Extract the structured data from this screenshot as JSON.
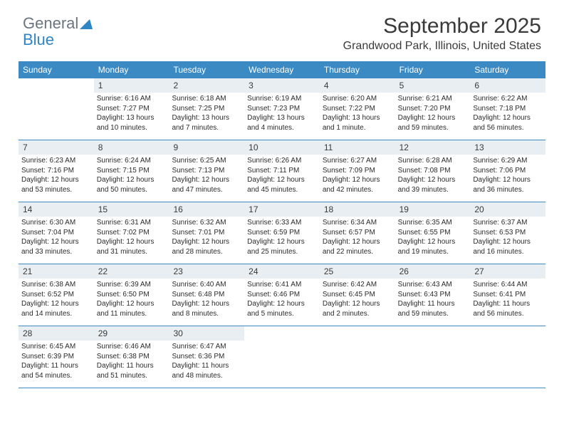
{
  "logo": {
    "text1": "General",
    "text2": "Blue"
  },
  "title": "September 2025",
  "location": "Grandwood Park, Illinois, United States",
  "colors": {
    "header_bg": "#3b8ac4",
    "header_text": "#ffffff",
    "daynum_bg": "#e9eef2",
    "text": "#2b2b2b",
    "logo_gray": "#6b7680",
    "logo_blue": "#2f86c5",
    "rule": "#3b8ac4"
  },
  "day_labels": [
    "Sunday",
    "Monday",
    "Tuesday",
    "Wednesday",
    "Thursday",
    "Friday",
    "Saturday"
  ],
  "weeks": [
    [
      {
        "n": "",
        "empty": true
      },
      {
        "n": "1",
        "sunrise": "Sunrise: 6:16 AM",
        "sunset": "Sunset: 7:27 PM",
        "d1": "Daylight: 13 hours",
        "d2": "and 10 minutes."
      },
      {
        "n": "2",
        "sunrise": "Sunrise: 6:18 AM",
        "sunset": "Sunset: 7:25 PM",
        "d1": "Daylight: 13 hours",
        "d2": "and 7 minutes."
      },
      {
        "n": "3",
        "sunrise": "Sunrise: 6:19 AM",
        "sunset": "Sunset: 7:23 PM",
        "d1": "Daylight: 13 hours",
        "d2": "and 4 minutes."
      },
      {
        "n": "4",
        "sunrise": "Sunrise: 6:20 AM",
        "sunset": "Sunset: 7:22 PM",
        "d1": "Daylight: 13 hours",
        "d2": "and 1 minute."
      },
      {
        "n": "5",
        "sunrise": "Sunrise: 6:21 AM",
        "sunset": "Sunset: 7:20 PM",
        "d1": "Daylight: 12 hours",
        "d2": "and 59 minutes."
      },
      {
        "n": "6",
        "sunrise": "Sunrise: 6:22 AM",
        "sunset": "Sunset: 7:18 PM",
        "d1": "Daylight: 12 hours",
        "d2": "and 56 minutes."
      }
    ],
    [
      {
        "n": "7",
        "sunrise": "Sunrise: 6:23 AM",
        "sunset": "Sunset: 7:16 PM",
        "d1": "Daylight: 12 hours",
        "d2": "and 53 minutes."
      },
      {
        "n": "8",
        "sunrise": "Sunrise: 6:24 AM",
        "sunset": "Sunset: 7:15 PM",
        "d1": "Daylight: 12 hours",
        "d2": "and 50 minutes."
      },
      {
        "n": "9",
        "sunrise": "Sunrise: 6:25 AM",
        "sunset": "Sunset: 7:13 PM",
        "d1": "Daylight: 12 hours",
        "d2": "and 47 minutes."
      },
      {
        "n": "10",
        "sunrise": "Sunrise: 6:26 AM",
        "sunset": "Sunset: 7:11 PM",
        "d1": "Daylight: 12 hours",
        "d2": "and 45 minutes."
      },
      {
        "n": "11",
        "sunrise": "Sunrise: 6:27 AM",
        "sunset": "Sunset: 7:09 PM",
        "d1": "Daylight: 12 hours",
        "d2": "and 42 minutes."
      },
      {
        "n": "12",
        "sunrise": "Sunrise: 6:28 AM",
        "sunset": "Sunset: 7:08 PM",
        "d1": "Daylight: 12 hours",
        "d2": "and 39 minutes."
      },
      {
        "n": "13",
        "sunrise": "Sunrise: 6:29 AM",
        "sunset": "Sunset: 7:06 PM",
        "d1": "Daylight: 12 hours",
        "d2": "and 36 minutes."
      }
    ],
    [
      {
        "n": "14",
        "sunrise": "Sunrise: 6:30 AM",
        "sunset": "Sunset: 7:04 PM",
        "d1": "Daylight: 12 hours",
        "d2": "and 33 minutes."
      },
      {
        "n": "15",
        "sunrise": "Sunrise: 6:31 AM",
        "sunset": "Sunset: 7:02 PM",
        "d1": "Daylight: 12 hours",
        "d2": "and 31 minutes."
      },
      {
        "n": "16",
        "sunrise": "Sunrise: 6:32 AM",
        "sunset": "Sunset: 7:01 PM",
        "d1": "Daylight: 12 hours",
        "d2": "and 28 minutes."
      },
      {
        "n": "17",
        "sunrise": "Sunrise: 6:33 AM",
        "sunset": "Sunset: 6:59 PM",
        "d1": "Daylight: 12 hours",
        "d2": "and 25 minutes."
      },
      {
        "n": "18",
        "sunrise": "Sunrise: 6:34 AM",
        "sunset": "Sunset: 6:57 PM",
        "d1": "Daylight: 12 hours",
        "d2": "and 22 minutes."
      },
      {
        "n": "19",
        "sunrise": "Sunrise: 6:35 AM",
        "sunset": "Sunset: 6:55 PM",
        "d1": "Daylight: 12 hours",
        "d2": "and 19 minutes."
      },
      {
        "n": "20",
        "sunrise": "Sunrise: 6:37 AM",
        "sunset": "Sunset: 6:53 PM",
        "d1": "Daylight: 12 hours",
        "d2": "and 16 minutes."
      }
    ],
    [
      {
        "n": "21",
        "sunrise": "Sunrise: 6:38 AM",
        "sunset": "Sunset: 6:52 PM",
        "d1": "Daylight: 12 hours",
        "d2": "and 14 minutes."
      },
      {
        "n": "22",
        "sunrise": "Sunrise: 6:39 AM",
        "sunset": "Sunset: 6:50 PM",
        "d1": "Daylight: 12 hours",
        "d2": "and 11 minutes."
      },
      {
        "n": "23",
        "sunrise": "Sunrise: 6:40 AM",
        "sunset": "Sunset: 6:48 PM",
        "d1": "Daylight: 12 hours",
        "d2": "and 8 minutes."
      },
      {
        "n": "24",
        "sunrise": "Sunrise: 6:41 AM",
        "sunset": "Sunset: 6:46 PM",
        "d1": "Daylight: 12 hours",
        "d2": "and 5 minutes."
      },
      {
        "n": "25",
        "sunrise": "Sunrise: 6:42 AM",
        "sunset": "Sunset: 6:45 PM",
        "d1": "Daylight: 12 hours",
        "d2": "and 2 minutes."
      },
      {
        "n": "26",
        "sunrise": "Sunrise: 6:43 AM",
        "sunset": "Sunset: 6:43 PM",
        "d1": "Daylight: 11 hours",
        "d2": "and 59 minutes."
      },
      {
        "n": "27",
        "sunrise": "Sunrise: 6:44 AM",
        "sunset": "Sunset: 6:41 PM",
        "d1": "Daylight: 11 hours",
        "d2": "and 56 minutes."
      }
    ],
    [
      {
        "n": "28",
        "sunrise": "Sunrise: 6:45 AM",
        "sunset": "Sunset: 6:39 PM",
        "d1": "Daylight: 11 hours",
        "d2": "and 54 minutes."
      },
      {
        "n": "29",
        "sunrise": "Sunrise: 6:46 AM",
        "sunset": "Sunset: 6:38 PM",
        "d1": "Daylight: 11 hours",
        "d2": "and 51 minutes."
      },
      {
        "n": "30",
        "sunrise": "Sunrise: 6:47 AM",
        "sunset": "Sunset: 6:36 PM",
        "d1": "Daylight: 11 hours",
        "d2": "and 48 minutes."
      },
      {
        "n": "",
        "empty": true
      },
      {
        "n": "",
        "empty": true
      },
      {
        "n": "",
        "empty": true
      },
      {
        "n": "",
        "empty": true
      }
    ]
  ]
}
